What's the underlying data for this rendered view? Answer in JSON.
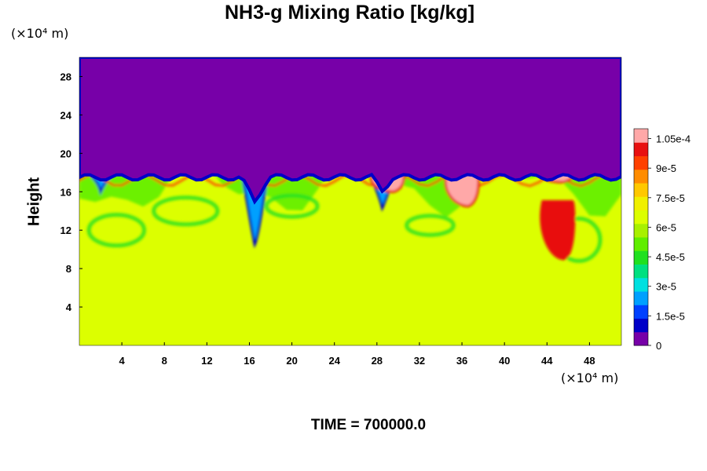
{
  "chart_data": {
    "type": "heatmap",
    "title": "NH3-g Mixing Ratio [kg/kg]",
    "ylabel": "Height",
    "y_unit": "(×10⁴ m)",
    "x_unit": "(×10⁴ m)",
    "footer": "TIME = 700000.0",
    "xlim": [
      0,
      51
    ],
    "ylim": [
      0,
      30
    ],
    "x_ticks": [
      "4",
      "8",
      "12",
      "16",
      "20",
      "24",
      "28",
      "32",
      "36",
      "40",
      "44",
      "48"
    ],
    "x_tick_values": [
      4,
      8,
      12,
      16,
      20,
      24,
      28,
      32,
      36,
      40,
      44,
      48
    ],
    "y_ticks": [
      "4",
      "8",
      "12",
      "16",
      "20",
      "24",
      "28"
    ],
    "y_tick_values": [
      4,
      8,
      12,
      16,
      20,
      24,
      28
    ],
    "colorbar": {
      "min": 0,
      "max": 0.00011,
      "tick_labels": [
        "0",
        "1.5e-5",
        "3e-5",
        "4.5e-5",
        "6e-5",
        "7.5e-5",
        "9e-5",
        "1.05e-4"
      ],
      "tick_values": [
        0,
        1.5e-05,
        3e-05,
        4.5e-05,
        6e-05,
        7.5e-05,
        9e-05,
        0.000105
      ],
      "colors": [
        "#7700a8",
        "#0000c8",
        "#0040ff",
        "#00a0ff",
        "#00e0e0",
        "#00e080",
        "#20e020",
        "#60ee00",
        "#a8f000",
        "#dcff00",
        "#f0f000",
        "#ffc800",
        "#ff8c00",
        "#ff4000",
        "#e81010",
        "#ffa8a8"
      ]
    },
    "regions": {
      "upper_value": 0,
      "lower_background_value": 7.4e-05,
      "transition_height_range": [
        17,
        19
      ],
      "mixed_layer_range": [
        10,
        18
      ],
      "high_value_plumes": [
        {
          "x": 36,
          "y_range": [
            14.5,
            18
          ],
          "value": 0.00011
        },
        {
          "x": 45,
          "y_range": [
            9,
            15
          ],
          "value": 0.0001
        },
        {
          "x": 29,
          "y_range": [
            16,
            18
          ],
          "value": 0.00011
        },
        {
          "x": 45,
          "y_range": [
            17,
            18
          ],
          "value": 0.00011
        }
      ]
    }
  }
}
